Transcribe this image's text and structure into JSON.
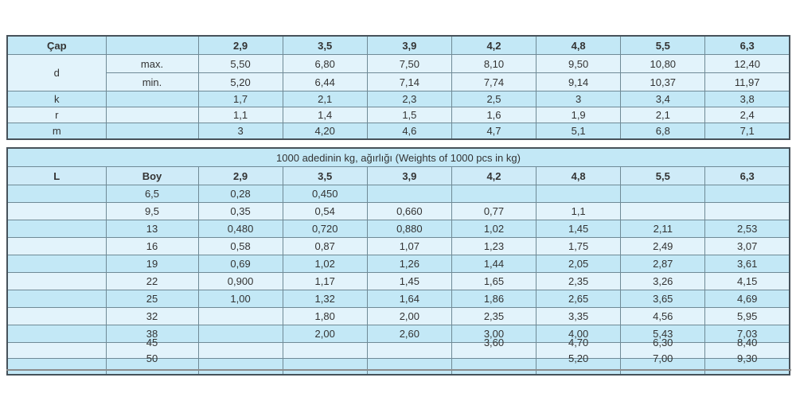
{
  "colors": {
    "row_medium": "#c3e8f6",
    "row_light": "#e2f3fb",
    "header_row": "#cfebf8",
    "border_inner": "#6f8a96",
    "border_outer": "#47525a",
    "text": "#333333",
    "divider_line": "#8c8c8c"
  },
  "table1": {
    "corner_label": "Çap",
    "columns": [
      "2,9",
      "3,5",
      "3,9",
      "4,2",
      "4,8",
      "5,5",
      "6,3"
    ],
    "d_label": "d",
    "max_label": "max.",
    "min_label": "min.",
    "d_max": [
      "5,50",
      "6,80",
      "7,50",
      "8,10",
      "9,50",
      "10,80",
      "12,40"
    ],
    "d_min": [
      "5,20",
      "6,44",
      "7,14",
      "7,74",
      "9,14",
      "10,37",
      "11,97"
    ],
    "k_label": "k",
    "k": [
      "1,7",
      "2,1",
      "2,3",
      "2,5",
      "3",
      "3,4",
      "3,8"
    ],
    "r_label": "r",
    "r": [
      "1,1",
      "1,4",
      "1,5",
      "1,6",
      "1,9",
      "2,1",
      "2,4"
    ],
    "m_label": "m",
    "m": [
      "3",
      "4,20",
      "4,6",
      "4,7",
      "5,1",
      "6,8",
      "7,1"
    ]
  },
  "table2": {
    "title": "1000 adedinin kg, ağırlığı  (Weights of 1000 pcs in kg)",
    "l_header": "L",
    "boy_header": "Boy",
    "columns": [
      "2,9",
      "3,5",
      "3,9",
      "4,2",
      "4,8",
      "5,5",
      "6,3"
    ],
    "rows": [
      {
        "boy": "6,5",
        "values": [
          "0,28",
          "0,450",
          "",
          "",
          "",
          "",
          ""
        ]
      },
      {
        "boy": "9,5",
        "values": [
          "0,35",
          "0,54",
          "0,660",
          "0,77",
          "1,1",
          "",
          ""
        ]
      },
      {
        "boy": "13",
        "values": [
          "0,480",
          "0,720",
          "0,880",
          "1,02",
          "1,45",
          "2,11",
          "2,53"
        ]
      },
      {
        "boy": "16",
        "values": [
          "0,58",
          "0,87",
          "1,07",
          "1,23",
          "1,75",
          "2,49",
          "3,07"
        ]
      },
      {
        "boy": "19",
        "values": [
          "0,69",
          "1,02",
          "1,26",
          "1,44",
          "2,05",
          "2,87",
          "3,61"
        ]
      },
      {
        "boy": "22",
        "values": [
          "0,900",
          "1,17",
          "1,45",
          "1,65",
          "2,35",
          "3,26",
          "4,15"
        ]
      },
      {
        "boy": "25",
        "values": [
          "1,00",
          "1,32",
          "1,64",
          "1,86",
          "2,65",
          "3,65",
          "4,69"
        ]
      },
      {
        "boy": "32",
        "values": [
          "",
          "1,80",
          "2,00",
          "2,35",
          "3,35",
          "4,56",
          "5,95"
        ]
      },
      {
        "boy": "38",
        "values": [
          "",
          "2,00",
          "2,60",
          "3,00",
          "4,00",
          "5,43",
          "7,03"
        ]
      },
      {
        "boy": "45",
        "values": [
          "",
          "",
          "",
          "3,60",
          "4,70",
          "6,30",
          "8,40"
        ],
        "overlap": true
      },
      {
        "boy": "50",
        "values": [
          "",
          "",
          "",
          "",
          "5,20",
          "7,00",
          "9,30"
        ],
        "overlap": true
      }
    ]
  }
}
